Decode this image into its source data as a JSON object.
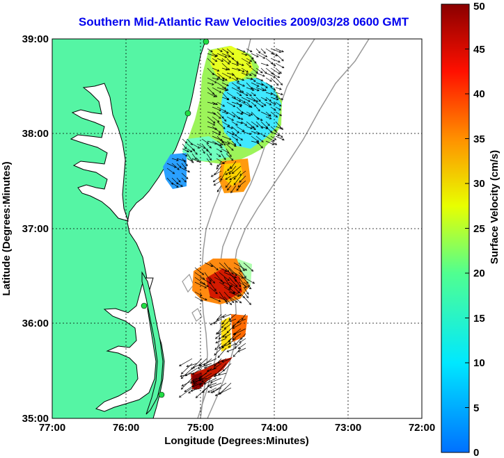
{
  "title": "Southern Mid-Atlantic Raw Velocities 2009/03/28 0600 GMT",
  "map": {
    "xlabel": "Longitude (Degrees:Minutes)",
    "ylabel": "Latitude (Degrees:Minutes)",
    "lon_ticks": [
      "77:00",
      "76:00",
      "75:00",
      "74:00",
      "73:00",
      "72:00"
    ],
    "lat_ticks": [
      "39:00",
      "38:00",
      "37:00",
      "36:00",
      "35:00"
    ],
    "lon_range": [
      -77,
      -72
    ],
    "lat_range": [
      35,
      39
    ],
    "colors": {
      "land": "#55f5a4",
      "coast": "#000000",
      "isobath": "#999999",
      "arrow": "#000000"
    }
  },
  "colorbar": {
    "label": "Surface Velocity (cm/s)",
    "ticks": [
      "0",
      "5",
      "10",
      "15",
      "20",
      "25",
      "30",
      "35",
      "40",
      "45",
      "50"
    ],
    "range": [
      0,
      50
    ]
  }
}
